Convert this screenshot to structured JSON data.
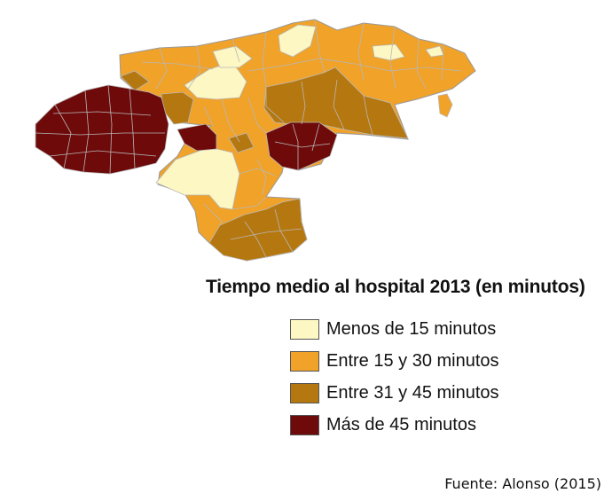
{
  "legend": {
    "title": "Tiempo medio al hospital 2013 (en minutos)",
    "items": [
      {
        "label": "Menos de 15 minutos",
        "color": "#fdf7c3"
      },
      {
        "label": "Entre 15 y 30 minutos",
        "color": "#f0a229"
      },
      {
        "label": "Entre 31  y 45 minutos",
        "color": "#b5770f"
      },
      {
        "label": "Más de 45 minutos",
        "color": "#6e0a0a"
      }
    ]
  },
  "source": "Fuente: Alonso (2015)",
  "colors": {
    "border": "#b8b8b8",
    "outline": "#9a9a9a"
  }
}
